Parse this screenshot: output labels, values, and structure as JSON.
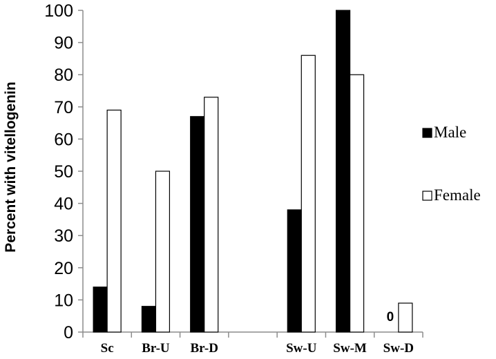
{
  "chart_data": {
    "type": "bar",
    "categories": [
      "Sc",
      "Br-U",
      "Br-D",
      "",
      "Sw-U",
      "Sw-M",
      "Sw-D"
    ],
    "series": [
      {
        "name": "Male",
        "color": "#000000",
        "values": [
          14,
          8,
          67,
          null,
          38,
          100,
          0
        ]
      },
      {
        "name": "Female",
        "color": "#ffffff",
        "values": [
          69,
          50,
          73,
          null,
          86,
          80,
          9
        ]
      }
    ],
    "title": "",
    "xlabel": "",
    "ylabel": "Percent with vitellogenin",
    "ylim": [
      0,
      100
    ],
    "yticks": [
      0,
      10,
      20,
      30,
      40,
      50,
      60,
      70,
      80,
      90,
      100
    ],
    "grid": false,
    "legend_position": "right",
    "annotations": [
      {
        "text": "0",
        "category": "Sw-D",
        "series": "Male"
      }
    ]
  }
}
